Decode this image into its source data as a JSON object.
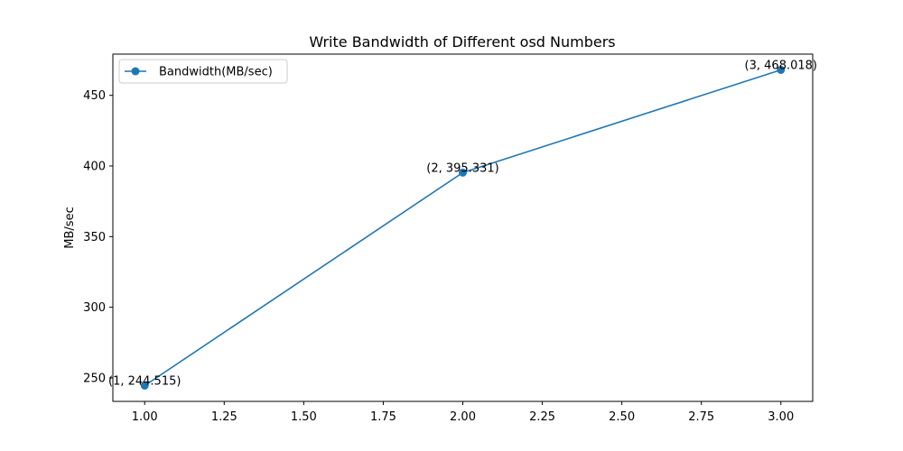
{
  "chart_data": {
    "type": "line",
    "title": "Write Bandwidth of Different osd Numbers",
    "xlabel": "",
    "ylabel": "MB/sec",
    "xlim": [
      0.9,
      3.1
    ],
    "ylim": [
      233.34,
      479.19
    ],
    "x_ticks": [
      1.0,
      1.25,
      1.5,
      1.75,
      2.0,
      2.25,
      2.5,
      2.75,
      3.0
    ],
    "x_tick_labels": [
      "1.00",
      "1.25",
      "1.50",
      "1.75",
      "2.00",
      "2.25",
      "2.50",
      "2.75",
      "3.00"
    ],
    "y_ticks": [
      250,
      300,
      350,
      400,
      450
    ],
    "y_tick_labels": [
      "250",
      "300",
      "350",
      "400",
      "450"
    ],
    "grid": false,
    "legend_position": "upper-left",
    "series": [
      {
        "name": "Bandwidth(MB/sec)",
        "color": "#1f77b4",
        "marker": "circle",
        "x": [
          1,
          2,
          3
        ],
        "y": [
          244.515,
          395.331,
          468.018
        ],
        "point_labels": [
          "(1, 244.515)",
          "(2, 395.331)",
          "(3, 468.018)"
        ]
      }
    ]
  }
}
